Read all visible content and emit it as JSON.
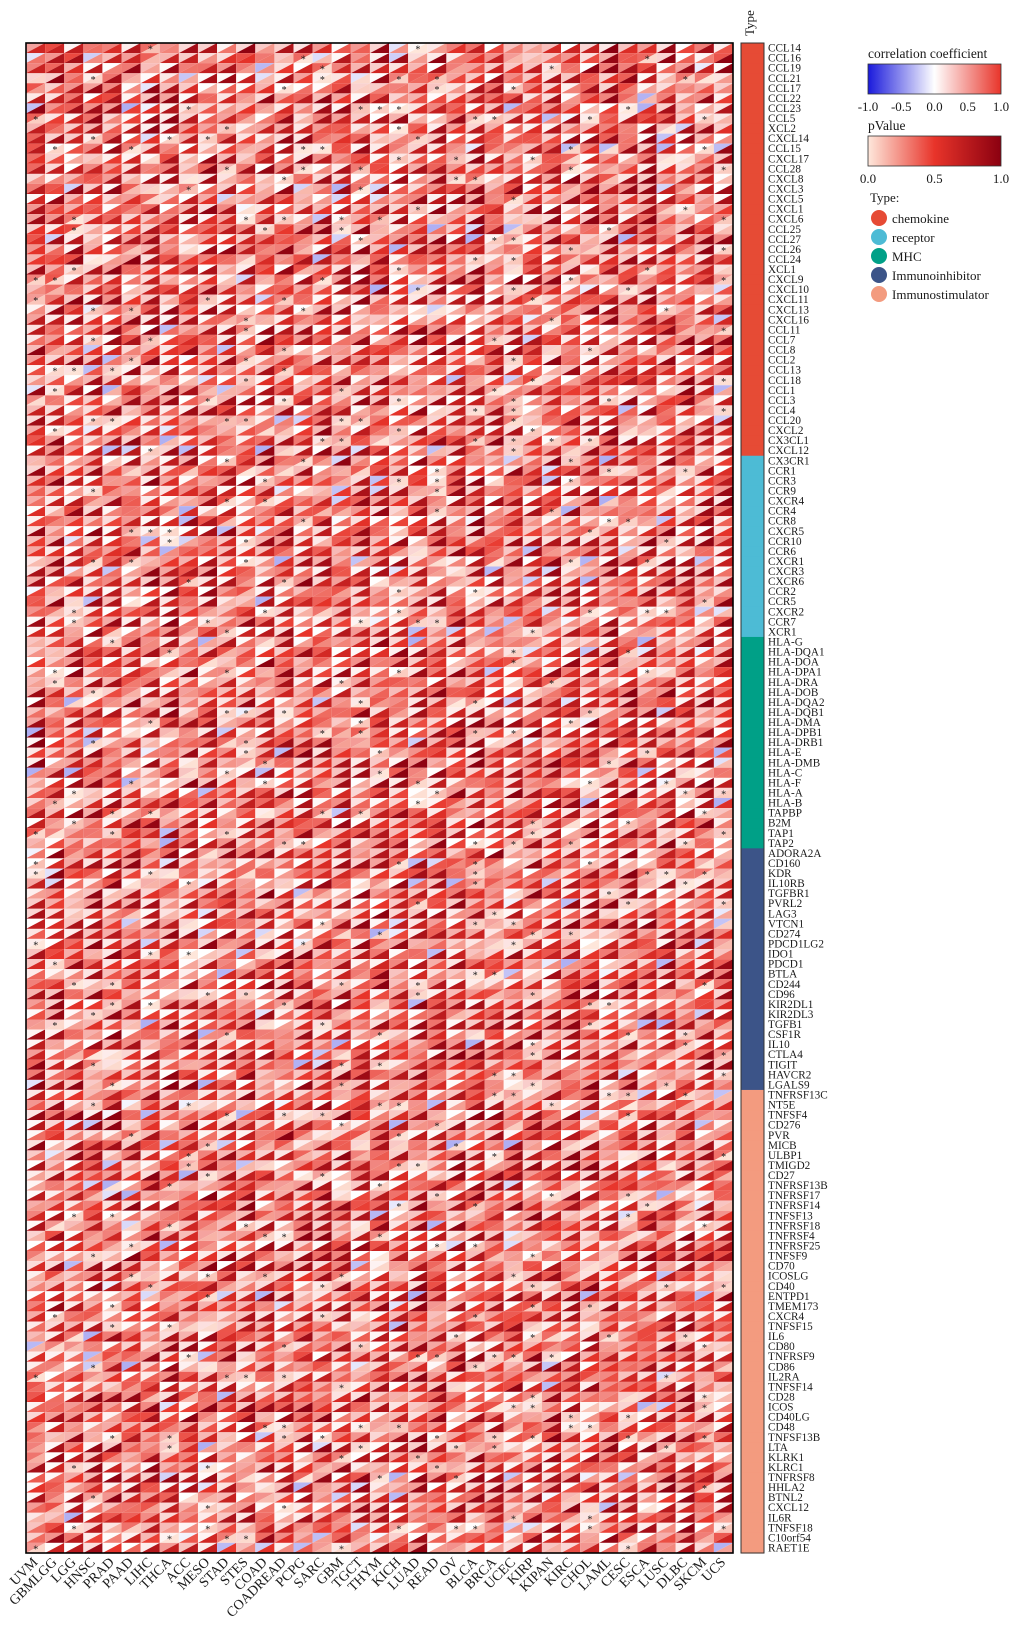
{
  "chart_data": {
    "type": "heatmap",
    "title": "",
    "cell_glyph": "split-triangle",
    "value_scale": {
      "name": "correlation coefficient",
      "range": [
        -1.0,
        1.0
      ],
      "ticks": [
        "-1.0",
        "-0.5",
        "0.0",
        "0.5",
        "1.0"
      ],
      "colors": [
        "#1a1adc",
        "#ffffff",
        "#e8342a"
      ]
    },
    "p_scale": {
      "name": "pValue",
      "range": [
        0.0,
        1.0
      ],
      "ticks": [
        "0.0",
        "0.5",
        "1.0"
      ],
      "colors": [
        "#fee8dc",
        "#e8342a",
        "#8b0010"
      ]
    },
    "annotation_label": "Type",
    "type_legend_title": "Type:",
    "types": [
      {
        "name": "chemokine",
        "color": "#e64b35"
      },
      {
        "name": "receptor",
        "color": "#4dbbd5"
      },
      {
        "name": "MHC",
        "color": "#00a087"
      },
      {
        "name": "Immunoinhibitor",
        "color": "#3c5488"
      },
      {
        "name": "Immunostimulator",
        "color": "#f39b7f"
      }
    ],
    "columns": [
      "UVM",
      "GBMLGG",
      "LGG",
      "HNSC",
      "PRAD",
      "PAAD",
      "LIHC",
      "THCA",
      "ACC",
      "MESO",
      "STAD",
      "STES",
      "COAD",
      "COADREAD",
      "PCPG",
      "SARC",
      "GBM",
      "TGCT",
      "THYM",
      "KICH",
      "LUAD",
      "READ",
      "OV",
      "BLCA",
      "BRCA",
      "UCEC",
      "KIRP",
      "KIPAN",
      "KIRC",
      "CHOL",
      "LAML",
      "CESC",
      "ESCA",
      "LUSC",
      "DLBC",
      "SKCM",
      "UCS"
    ],
    "rows": [
      {
        "gene": "CCL14",
        "type": "chemokine"
      },
      {
        "gene": "CCL16",
        "type": "chemokine"
      },
      {
        "gene": "CCL19",
        "type": "chemokine"
      },
      {
        "gene": "CCL21",
        "type": "chemokine"
      },
      {
        "gene": "CCL17",
        "type": "chemokine"
      },
      {
        "gene": "CCL22",
        "type": "chemokine"
      },
      {
        "gene": "CCL23",
        "type": "chemokine"
      },
      {
        "gene": "CCL5",
        "type": "chemokine"
      },
      {
        "gene": "XCL2",
        "type": "chemokine"
      },
      {
        "gene": "CXCL14",
        "type": "chemokine"
      },
      {
        "gene": "CCL15",
        "type": "chemokine"
      },
      {
        "gene": "CXCL17",
        "type": "chemokine"
      },
      {
        "gene": "CCL28",
        "type": "chemokine"
      },
      {
        "gene": "CXCL8",
        "type": "chemokine"
      },
      {
        "gene": "CXCL3",
        "type": "chemokine"
      },
      {
        "gene": "CXCL5",
        "type": "chemokine"
      },
      {
        "gene": "CXCL1",
        "type": "chemokine"
      },
      {
        "gene": "CXCL6",
        "type": "chemokine"
      },
      {
        "gene": "CCL25",
        "type": "chemokine"
      },
      {
        "gene": "CCL27",
        "type": "chemokine"
      },
      {
        "gene": "CCL26",
        "type": "chemokine"
      },
      {
        "gene": "CCL24",
        "type": "chemokine"
      },
      {
        "gene": "XCL1",
        "type": "chemokine"
      },
      {
        "gene": "CXCL9",
        "type": "chemokine"
      },
      {
        "gene": "CXCL10",
        "type": "chemokine"
      },
      {
        "gene": "CXCL11",
        "type": "chemokine"
      },
      {
        "gene": "CXCL13",
        "type": "chemokine"
      },
      {
        "gene": "CXCL16",
        "type": "chemokine"
      },
      {
        "gene": "CCL11",
        "type": "chemokine"
      },
      {
        "gene": "CCL7",
        "type": "chemokine"
      },
      {
        "gene": "CCL8",
        "type": "chemokine"
      },
      {
        "gene": "CCL2",
        "type": "chemokine"
      },
      {
        "gene": "CCL13",
        "type": "chemokine"
      },
      {
        "gene": "CCL18",
        "type": "chemokine"
      },
      {
        "gene": "CCL1",
        "type": "chemokine"
      },
      {
        "gene": "CCL3",
        "type": "chemokine"
      },
      {
        "gene": "CCL4",
        "type": "chemokine"
      },
      {
        "gene": "CCL20",
        "type": "chemokine"
      },
      {
        "gene": "CXCL2",
        "type": "chemokine"
      },
      {
        "gene": "CX3CL1",
        "type": "chemokine"
      },
      {
        "gene": "CXCL12",
        "type": "chemokine"
      },
      {
        "gene": "CX3CR1",
        "type": "receptor"
      },
      {
        "gene": "CCR1",
        "type": "receptor"
      },
      {
        "gene": "CCR3",
        "type": "receptor"
      },
      {
        "gene": "CCR9",
        "type": "receptor"
      },
      {
        "gene": "CXCR4",
        "type": "receptor"
      },
      {
        "gene": "CCR4",
        "type": "receptor"
      },
      {
        "gene": "CCR8",
        "type": "receptor"
      },
      {
        "gene": "CXCR5",
        "type": "receptor"
      },
      {
        "gene": "CCR10",
        "type": "receptor"
      },
      {
        "gene": "CCR6",
        "type": "receptor"
      },
      {
        "gene": "CXCR1",
        "type": "receptor"
      },
      {
        "gene": "CXCR3",
        "type": "receptor"
      },
      {
        "gene": "CXCR6",
        "type": "receptor"
      },
      {
        "gene": "CCR2",
        "type": "receptor"
      },
      {
        "gene": "CCR5",
        "type": "receptor"
      },
      {
        "gene": "CXCR2",
        "type": "receptor"
      },
      {
        "gene": "CCR7",
        "type": "receptor"
      },
      {
        "gene": "XCR1",
        "type": "receptor"
      },
      {
        "gene": "HLA-G",
        "type": "MHC"
      },
      {
        "gene": "HLA-DQA1",
        "type": "MHC"
      },
      {
        "gene": "HLA-DOA",
        "type": "MHC"
      },
      {
        "gene": "HLA-DPA1",
        "type": "MHC"
      },
      {
        "gene": "HLA-DRA",
        "type": "MHC"
      },
      {
        "gene": "HLA-DOB",
        "type": "MHC"
      },
      {
        "gene": "HLA-DQA2",
        "type": "MHC"
      },
      {
        "gene": "HLA-DQB1",
        "type": "MHC"
      },
      {
        "gene": "HLA-DMA",
        "type": "MHC"
      },
      {
        "gene": "HLA-DPB1",
        "type": "MHC"
      },
      {
        "gene": "HLA-DRB1",
        "type": "MHC"
      },
      {
        "gene": "HLA-E",
        "type": "MHC"
      },
      {
        "gene": "HLA-DMB",
        "type": "MHC"
      },
      {
        "gene": "HLA-C",
        "type": "MHC"
      },
      {
        "gene": "HLA-F",
        "type": "MHC"
      },
      {
        "gene": "HLA-A",
        "type": "MHC"
      },
      {
        "gene": "HLA-B",
        "type": "MHC"
      },
      {
        "gene": "TAPBP",
        "type": "MHC"
      },
      {
        "gene": "B2M",
        "type": "MHC"
      },
      {
        "gene": "TAP1",
        "type": "MHC"
      },
      {
        "gene": "TAP2",
        "type": "MHC"
      },
      {
        "gene": "ADORA2A",
        "type": "Immunoinhibitor"
      },
      {
        "gene": "CD160",
        "type": "Immunoinhibitor"
      },
      {
        "gene": "KDR",
        "type": "Immunoinhibitor"
      },
      {
        "gene": "IL10RB",
        "type": "Immunoinhibitor"
      },
      {
        "gene": "TGFBR1",
        "type": "Immunoinhibitor"
      },
      {
        "gene": "PVRL2",
        "type": "Immunoinhibitor"
      },
      {
        "gene": "LAG3",
        "type": "Immunoinhibitor"
      },
      {
        "gene": "VTCN1",
        "type": "Immunoinhibitor"
      },
      {
        "gene": "CD274",
        "type": "Immunoinhibitor"
      },
      {
        "gene": "PDCD1LG2",
        "type": "Immunoinhibitor"
      },
      {
        "gene": "IDO1",
        "type": "Immunoinhibitor"
      },
      {
        "gene": "PDCD1",
        "type": "Immunoinhibitor"
      },
      {
        "gene": "BTLA",
        "type": "Immunoinhibitor"
      },
      {
        "gene": "CD244",
        "type": "Immunoinhibitor"
      },
      {
        "gene": "CD96",
        "type": "Immunoinhibitor"
      },
      {
        "gene": "KIR2DL1",
        "type": "Immunoinhibitor"
      },
      {
        "gene": "KIR2DL3",
        "type": "Immunoinhibitor"
      },
      {
        "gene": "TGFB1",
        "type": "Immunoinhibitor"
      },
      {
        "gene": "CSF1R",
        "type": "Immunoinhibitor"
      },
      {
        "gene": "IL10",
        "type": "Immunoinhibitor"
      },
      {
        "gene": "CTLA4",
        "type": "Immunoinhibitor"
      },
      {
        "gene": "TIGIT",
        "type": "Immunoinhibitor"
      },
      {
        "gene": "HAVCR2",
        "type": "Immunoinhibitor"
      },
      {
        "gene": "LGALS9",
        "type": "Immunoinhibitor"
      },
      {
        "gene": "TNFRSF13C",
        "type": "Immunostimulator"
      },
      {
        "gene": "NT5E",
        "type": "Immunostimulator"
      },
      {
        "gene": "TNFSF4",
        "type": "Immunostimulator"
      },
      {
        "gene": "CD276",
        "type": "Immunostimulator"
      },
      {
        "gene": "PVR",
        "type": "Immunostimulator"
      },
      {
        "gene": "MICB",
        "type": "Immunostimulator"
      },
      {
        "gene": "ULBP1",
        "type": "Immunostimulator"
      },
      {
        "gene": "TMIGD2",
        "type": "Immunostimulator"
      },
      {
        "gene": "CD27",
        "type": "Immunostimulator"
      },
      {
        "gene": "TNFRSF13B",
        "type": "Immunostimulator"
      },
      {
        "gene": "TNFRSF17",
        "type": "Immunostimulator"
      },
      {
        "gene": "TNFRSF14",
        "type": "Immunostimulator"
      },
      {
        "gene": "TNFSF13",
        "type": "Immunostimulator"
      },
      {
        "gene": "TNFRSF18",
        "type": "Immunostimulator"
      },
      {
        "gene": "TNFRSF4",
        "type": "Immunostimulator"
      },
      {
        "gene": "TNFRSF25",
        "type": "Immunostimulator"
      },
      {
        "gene": "TNFSF9",
        "type": "Immunostimulator"
      },
      {
        "gene": "CD70",
        "type": "Immunostimulator"
      },
      {
        "gene": "ICOSLG",
        "type": "Immunostimulator"
      },
      {
        "gene": "CD40",
        "type": "Immunostimulator"
      },
      {
        "gene": "ENTPD1",
        "type": "Immunostimulator"
      },
      {
        "gene": "TMEM173",
        "type": "Immunostimulator"
      },
      {
        "gene": "CXCR4",
        "type": "Immunostimulator"
      },
      {
        "gene": "TNFSF15",
        "type": "Immunostimulator"
      },
      {
        "gene": "IL6",
        "type": "Immunostimulator"
      },
      {
        "gene": "CD80",
        "type": "Immunostimulator"
      },
      {
        "gene": "TNFRSF9",
        "type": "Immunostimulator"
      },
      {
        "gene": "CD86",
        "type": "Immunostimulator"
      },
      {
        "gene": "IL2RA",
        "type": "Immunostimulator"
      },
      {
        "gene": "TNFSF14",
        "type": "Immunostimulator"
      },
      {
        "gene": "CD28",
        "type": "Immunostimulator"
      },
      {
        "gene": "ICOS",
        "type": "Immunostimulator"
      },
      {
        "gene": "CD40LG",
        "type": "Immunostimulator"
      },
      {
        "gene": "CD48",
        "type": "Immunostimulator"
      },
      {
        "gene": "TNFSF13B",
        "type": "Immunostimulator"
      },
      {
        "gene": "LTA",
        "type": "Immunostimulator"
      },
      {
        "gene": "KLRK1",
        "type": "Immunostimulator"
      },
      {
        "gene": "KLRC1",
        "type": "Immunostimulator"
      },
      {
        "gene": "TNFRSF8",
        "type": "Immunostimulator"
      },
      {
        "gene": "HHLA2",
        "type": "Immunostimulator"
      },
      {
        "gene": "BTNL2",
        "type": "Immunostimulator"
      },
      {
        "gene": "CXCL12",
        "type": "Immunostimulator"
      },
      {
        "gene": "IL6R",
        "type": "Immunostimulator"
      },
      {
        "gene": "TNFSF18",
        "type": "Immunostimulator"
      },
      {
        "gene": "C10orf54",
        "type": "Immunostimulator"
      },
      {
        "gene": "RAET1E",
        "type": "Immunostimulator"
      }
    ],
    "significance_marker": "*",
    "cell_values_note_shown": ""
  }
}
